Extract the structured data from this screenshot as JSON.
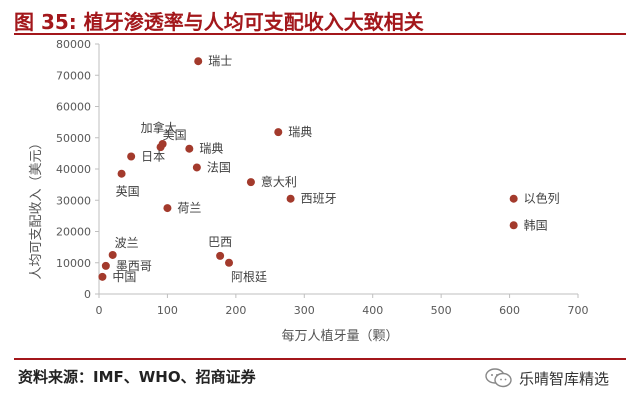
{
  "header": {
    "title": "图 35:  植牙渗透率与人均可支配收入大致相关"
  },
  "footer": {
    "source": "资料来源：IMF、WHO、招商证券",
    "watermark": "乐晴智库精选",
    "watermark_icon": "wechat-icon"
  },
  "colors": {
    "accent": "#a3171b",
    "marker": "#a33a2c",
    "axis": "#bfbfbf"
  },
  "chart_data": {
    "type": "scatter",
    "title": "",
    "xlabel": "每万人植牙量（颗）",
    "ylabel": "人均可支配收入（美元）",
    "xlim": [
      0,
      700
    ],
    "ylim": [
      0,
      80000
    ],
    "xticks": [
      "0",
      "100",
      "200",
      "300",
      "400",
      "500",
      "600",
      "700"
    ],
    "yticks": [
      "0",
      "10000",
      "20000",
      "30000",
      "40000",
      "50000",
      "60000",
      "70000",
      "80000"
    ],
    "grid": false,
    "points": [
      {
        "label": "瑞士",
        "x": 145,
        "y": 74500,
        "label_pos": "right"
      },
      {
        "label": "加拿大",
        "x": 93,
        "y": 48000,
        "label_pos": "above-left"
      },
      {
        "label": "美国",
        "x": 90,
        "y": 47000,
        "label_pos": "above-right"
      },
      {
        "label": "日本",
        "x": 47,
        "y": 44000,
        "label_pos": "right"
      },
      {
        "label": "瑞典",
        "x": 132,
        "y": 46500,
        "label_pos": "right"
      },
      {
        "label": "瑞典",
        "x": 262,
        "y": 51800,
        "label_pos": "right"
      },
      {
        "label": "法国",
        "x": 143,
        "y": 40500,
        "label_pos": "right"
      },
      {
        "label": "英国",
        "x": 33,
        "y": 38500,
        "label_pos": "below"
      },
      {
        "label": "意大利",
        "x": 222,
        "y": 35800,
        "label_pos": "right"
      },
      {
        "label": "西班牙",
        "x": 280,
        "y": 30500,
        "label_pos": "right"
      },
      {
        "label": "荷兰",
        "x": 100,
        "y": 27500,
        "label_pos": "right"
      },
      {
        "label": "以色列",
        "x": 606,
        "y": 30500,
        "label_pos": "right"
      },
      {
        "label": "韩国",
        "x": 606,
        "y": 22000,
        "label_pos": "right"
      },
      {
        "label": "波兰",
        "x": 20,
        "y": 12500,
        "label_pos": "above-right"
      },
      {
        "label": "墨西哥",
        "x": 10,
        "y": 9000,
        "label_pos": "right"
      },
      {
        "label": "中国",
        "x": 5,
        "y": 5500,
        "label_pos": "right"
      },
      {
        "label": "巴西",
        "x": 177,
        "y": 12200,
        "label_pos": "above"
      },
      {
        "label": "阿根廷",
        "x": 190,
        "y": 10000,
        "label_pos": "below-right"
      }
    ]
  }
}
